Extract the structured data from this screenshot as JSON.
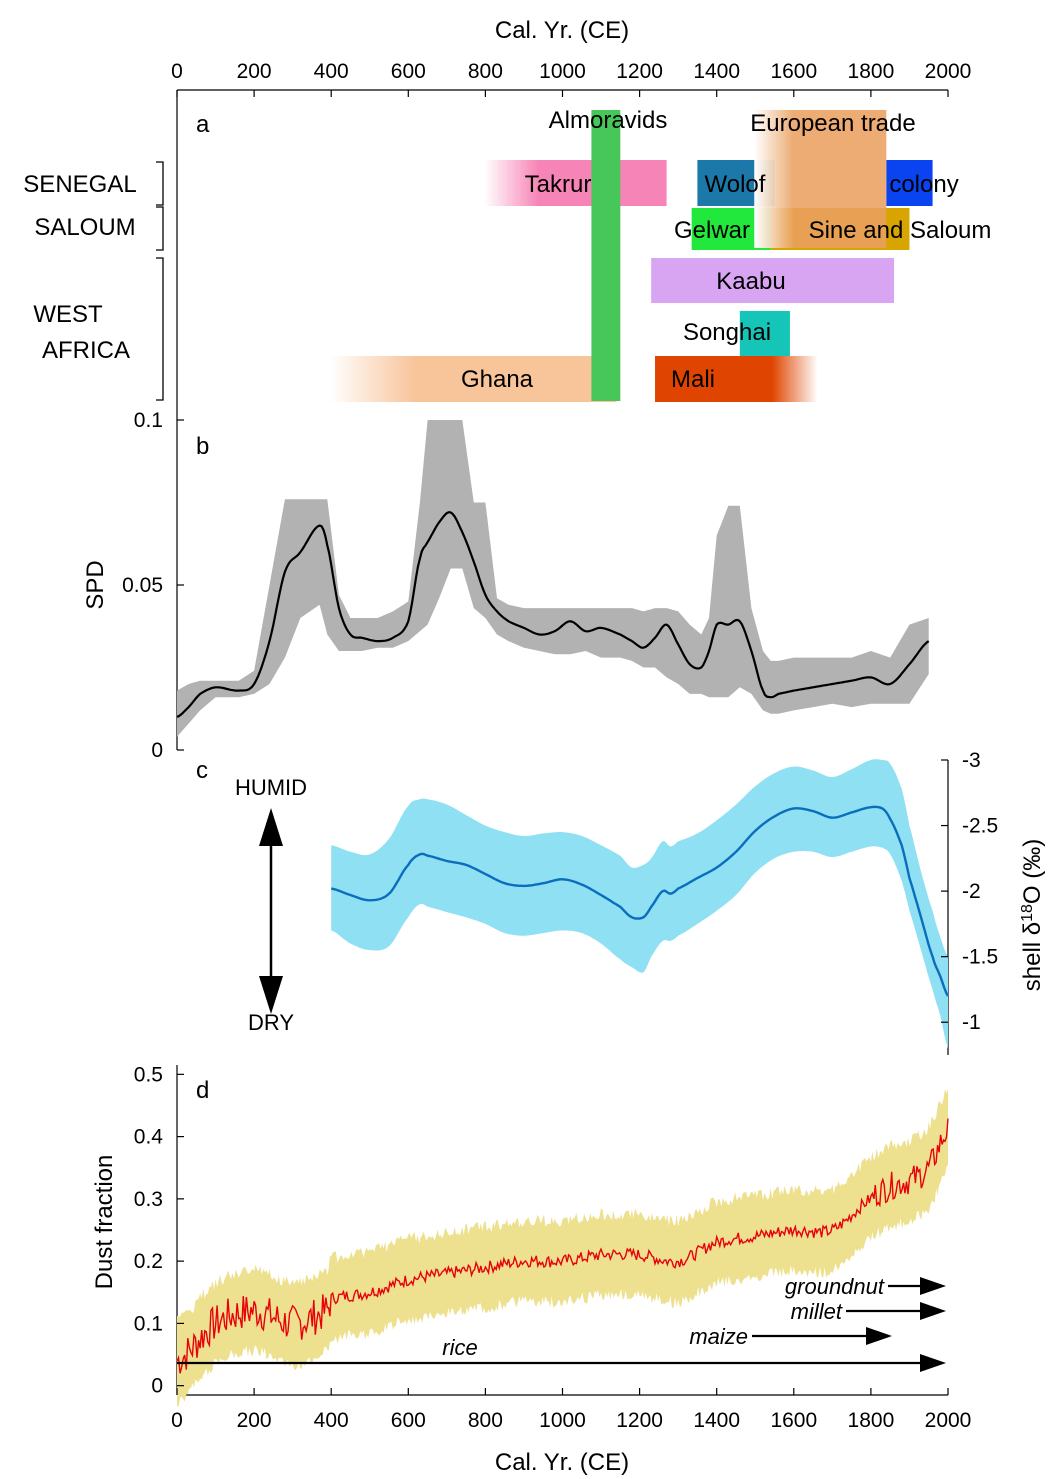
{
  "chart_data": {
    "type": "line",
    "shared_x": {
      "label": "Cal. Yr. (CE)",
      "range": [
        0,
        2000
      ],
      "ticks": [
        0,
        200,
        400,
        600,
        800,
        1000,
        1200,
        1400,
        1600,
        1800,
        2000
      ],
      "ticks_top_and_bottom": true
    },
    "panels": [
      {
        "letter": "a",
        "type": "timeline",
        "regions": [
          {
            "label": "SENEGAL"
          },
          {
            "label": "SALOUM"
          },
          {
            "label": "WEST AFRICA",
            "lines": [
              "WEST",
              "AFRICA"
            ]
          }
        ],
        "bars": [
          {
            "label": "Almoravids",
            "start": 1075,
            "end": 1150,
            "lane": "span",
            "color": "#47c65a"
          },
          {
            "label": "European trade",
            "start": 1500,
            "end": 1840,
            "lane": "top",
            "color": "#e9a060",
            "fade_start": true
          },
          {
            "label": "Takrur",
            "start": 800,
            "end": 1270,
            "lane": "senegal",
            "color": "#f784b6",
            "fade_start": true
          },
          {
            "label": "Wolof",
            "start": 1350,
            "end": 1550,
            "lane": "senegal",
            "color": "#1b78a8"
          },
          {
            "label": "colony",
            "start": 1840,
            "end": 1960,
            "lane": "senegal",
            "color": "#0a43f0"
          },
          {
            "label": "Gelwar",
            "start": 1335,
            "end": 1540,
            "lane": "saloum",
            "color": "#22e83d"
          },
          {
            "label": "Sine and Saloum",
            "start": 1540,
            "end": 1900,
            "lane": "saloum",
            "color": "#d8a400"
          },
          {
            "label": "Kaabu",
            "start": 1230,
            "end": 1860,
            "lane": "wa1",
            "color": "#d7a5f2"
          },
          {
            "label": "Songhai",
            "start": 1460,
            "end": 1590,
            "lane": "wa2",
            "color": "#14c5b8"
          },
          {
            "label": "Ghana",
            "start": 400,
            "end": 1140,
            "lane": "wa3",
            "color": "#f8c49a",
            "fade_start": true
          },
          {
            "label": "Mali",
            "start": 1240,
            "end": 1660,
            "lane": "wa3",
            "color": "#df4500",
            "fade_end": true
          }
        ]
      },
      {
        "letter": "b",
        "ylabel": "SPD",
        "ylim": [
          0,
          0.1
        ],
        "yticks": [
          0,
          0.05,
          0.1
        ],
        "ytick_labels": [
          "0",
          "0.05",
          "0.1"
        ],
        "series": [
          {
            "kind": "median",
            "color": "#000000",
            "band_color": "#b2b2b2",
            "x": [
              0,
              30,
              60,
              100,
              160,
              200,
              240,
              280,
              320,
              370,
              390,
              420,
              450,
              480,
              520,
              560,
              600,
              630,
              650,
              680,
              710,
              740,
              770,
              800,
              830,
              860,
              900,
              940,
              980,
              1020,
              1060,
              1100,
              1150,
              1180,
              1210,
              1240,
              1270,
              1300,
              1330,
              1360,
              1380,
              1400,
              1430,
              1460,
              1490,
              1520,
              1540,
              1560,
              1600,
              1650,
              1700,
              1750,
              1800,
              1850,
              1900,
              1950
            ],
            "y": [
              0.01,
              0.013,
              0.017,
              0.019,
              0.018,
              0.02,
              0.033,
              0.054,
              0.06,
              0.068,
              0.062,
              0.043,
              0.035,
              0.034,
              0.033,
              0.034,
              0.039,
              0.058,
              0.063,
              0.069,
              0.072,
              0.066,
              0.057,
              0.047,
              0.042,
              0.039,
              0.037,
              0.035,
              0.036,
              0.039,
              0.036,
              0.037,
              0.035,
              0.033,
              0.031,
              0.034,
              0.038,
              0.032,
              0.026,
              0.025,
              0.03,
              0.038,
              0.038,
              0.039,
              0.03,
              0.018,
              0.016,
              0.017,
              0.018,
              0.019,
              0.02,
              0.021,
              0.022,
              0.02,
              0.026,
              0.033
            ],
            "band_low": [
              0.004,
              0.008,
              0.012,
              0.016,
              0.016,
              0.017,
              0.02,
              0.028,
              0.04,
              0.044,
              0.035,
              0.03,
              0.03,
              0.03,
              0.031,
              0.031,
              0.033,
              0.036,
              0.038,
              0.046,
              0.055,
              0.055,
              0.043,
              0.04,
              0.035,
              0.033,
              0.031,
              0.03,
              0.029,
              0.029,
              0.03,
              0.028,
              0.028,
              0.027,
              0.025,
              0.025,
              0.022,
              0.02,
              0.017,
              0.017,
              0.016,
              0.016,
              0.016,
              0.019,
              0.017,
              0.012,
              0.011,
              0.011,
              0.012,
              0.013,
              0.014,
              0.013,
              0.014,
              0.014,
              0.014,
              0.023
            ],
            "band_high": [
              0.018,
              0.02,
              0.021,
              0.021,
              0.021,
              0.024,
              0.05,
              0.076,
              0.076,
              0.076,
              0.076,
              0.047,
              0.04,
              0.04,
              0.04,
              0.042,
              0.045,
              0.075,
              0.1,
              0.1,
              0.1,
              0.1,
              0.075,
              0.075,
              0.046,
              0.044,
              0.043,
              0.043,
              0.043,
              0.043,
              0.043,
              0.043,
              0.043,
              0.043,
              0.042,
              0.043,
              0.043,
              0.042,
              0.038,
              0.035,
              0.04,
              0.065,
              0.074,
              0.074,
              0.043,
              0.03,
              0.027,
              0.027,
              0.028,
              0.028,
              0.028,
              0.028,
              0.03,
              0.028,
              0.038,
              0.04
            ]
          }
        ]
      },
      {
        "letter": "c",
        "ylabel": "shell δ18O (‰)",
        "ylim": [
          -0.75,
          -3.0
        ],
        "yticks": [
          -1,
          -1.5,
          -2,
          -2.5,
          -3
        ],
        "ytick_labels": [
          "-1",
          "-1.5",
          "-2",
          "-2.5",
          "-3"
        ],
        "axis_side": "right",
        "annotations": {
          "top": "HUMID",
          "bottom": "DRY"
        },
        "series": [
          {
            "kind": "mean",
            "color": "#0a6ebd",
            "band_color": "#8ee0f2",
            "x": [
              400,
              450,
              500,
              550,
              600,
              630,
              650,
              700,
              750,
              800,
              850,
              900,
              950,
              1000,
              1050,
              1100,
              1150,
              1180,
              1210,
              1230,
              1260,
              1280,
              1300,
              1350,
              1400,
              1450,
              1500,
              1550,
              1600,
              1650,
              1700,
              1750,
              1800,
              1830,
              1850,
              1880,
              1900,
              1930,
              1960,
              1980,
              2000
            ],
            "y": [
              -2.02,
              -1.97,
              -1.93,
              -1.98,
              -2.2,
              -2.28,
              -2.27,
              -2.23,
              -2.2,
              -2.13,
              -2.06,
              -2.04,
              -2.06,
              -2.09,
              -2.05,
              -1.97,
              -1.88,
              -1.8,
              -1.8,
              -1.88,
              -2.0,
              -1.98,
              -2.02,
              -2.1,
              -2.18,
              -2.3,
              -2.46,
              -2.57,
              -2.63,
              -2.61,
              -2.56,
              -2.6,
              -2.64,
              -2.63,
              -2.55,
              -2.35,
              -2.1,
              -1.8,
              -1.5,
              -1.35,
              -1.2
            ],
            "band_low": [
              -1.7,
              -1.6,
              -1.55,
              -1.58,
              -1.8,
              -1.9,
              -1.88,
              -1.84,
              -1.8,
              -1.75,
              -1.68,
              -1.66,
              -1.68,
              -1.7,
              -1.68,
              -1.6,
              -1.48,
              -1.42,
              -1.38,
              -1.5,
              -1.62,
              -1.62,
              -1.66,
              -1.75,
              -1.85,
              -1.97,
              -2.14,
              -2.25,
              -2.3,
              -2.3,
              -2.26,
              -2.3,
              -2.34,
              -2.33,
              -2.28,
              -2.08,
              -1.85,
              -1.55,
              -1.25,
              -1.05,
              -0.8
            ],
            "band_high": [
              -2.35,
              -2.3,
              -2.28,
              -2.4,
              -2.65,
              -2.7,
              -2.7,
              -2.66,
              -2.58,
              -2.5,
              -2.45,
              -2.42,
              -2.44,
              -2.45,
              -2.42,
              -2.35,
              -2.27,
              -2.18,
              -2.2,
              -2.25,
              -2.38,
              -2.34,
              -2.38,
              -2.44,
              -2.54,
              -2.66,
              -2.8,
              -2.9,
              -2.95,
              -2.92,
              -2.87,
              -2.93,
              -3.0,
              -3.0,
              -2.97,
              -2.78,
              -2.5,
              -2.15,
              -1.85,
              -1.65,
              -1.5
            ]
          }
        ]
      },
      {
        "letter": "d",
        "ylabel": "Dust fraction",
        "ylim": [
          -0.015,
          0.515
        ],
        "yticks": [
          0,
          0.1,
          0.2,
          0.3,
          0.4,
          0.5
        ],
        "ytick_labels": [
          "0",
          "0.1",
          "0.2",
          "0.3",
          "0.4",
          "0.5"
        ],
        "series": [
          {
            "kind": "mean",
            "color": "#e8000b",
            "band_color": "#ede18f",
            "x": [
              0,
              100,
              200,
              300,
              390,
              400,
              500,
              600,
              700,
              800,
              900,
              1000,
              1100,
              1200,
              1300,
              1400,
              1500,
              1600,
              1700,
              1800,
              1850,
              1900,
              1950,
              2000
            ],
            "y": [
              0.04,
              0.1,
              0.12,
              0.1,
              0.12,
              0.14,
              0.15,
              0.17,
              0.18,
              0.19,
              0.2,
              0.2,
              0.21,
              0.21,
              0.2,
              0.23,
              0.24,
              0.25,
              0.25,
              0.3,
              0.32,
              0.33,
              0.35,
              0.41
            ],
            "band_half_width": 0.055
          }
        ],
        "crops": [
          {
            "name": "rice",
            "start": 0,
            "end": 2000
          },
          {
            "name": "maize",
            "start": 1500,
            "end": 1860
          },
          {
            "name": "millet",
            "start": 1700,
            "end": 2000
          },
          {
            "name": "groundnut",
            "start": 1700,
            "end": 2000
          }
        ]
      }
    ]
  }
}
